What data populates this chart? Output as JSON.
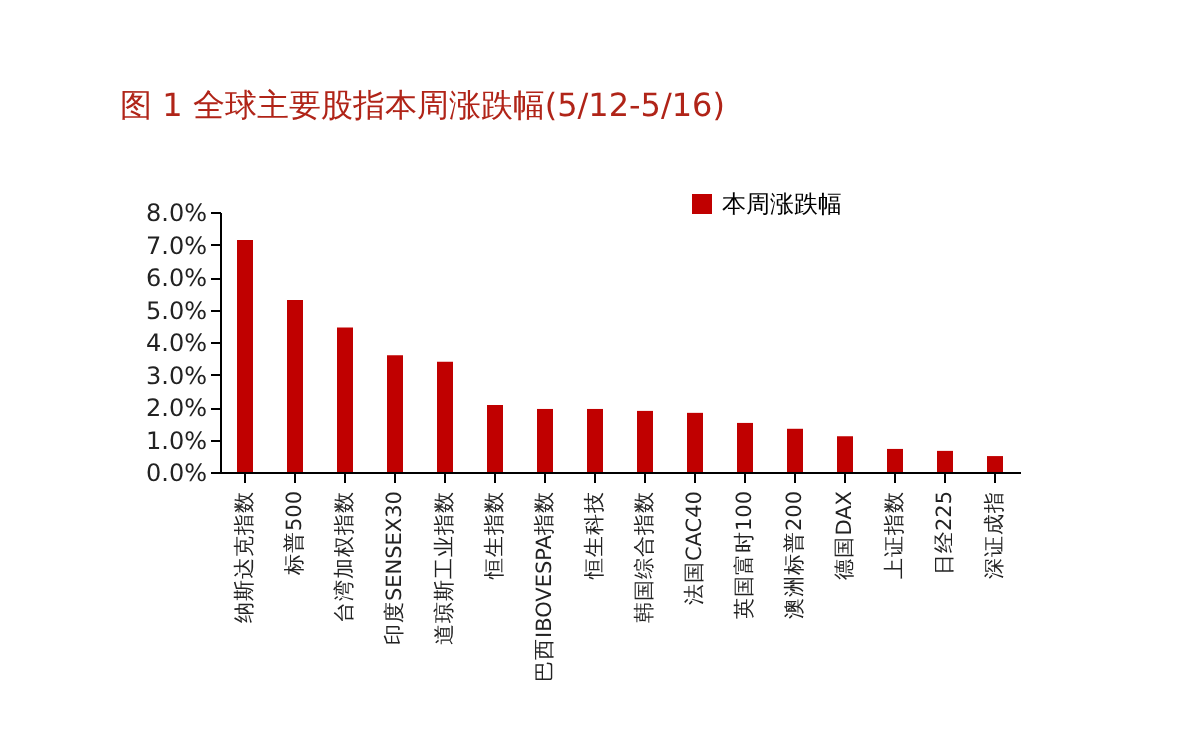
{
  "chart_data": {
    "type": "bar",
    "title": "图 1  全球主要股指本周涨跌幅(5/12-5/16)",
    "categories": [
      "纳斯达克指数",
      "标普500",
      "台湾加权指数",
      "印度SENSEX30",
      "道琼斯工业指数",
      "恒生指数",
      "巴西IBOVESPA指数",
      "恒生科技",
      "韩国综合指数",
      "法国CAC40",
      "英国富时100",
      "澳洲标普200",
      "德国DAX",
      "上证指数",
      "日经225",
      "深证成指"
    ],
    "series": [
      {
        "name": "本周涨跌幅",
        "color": "#c00000",
        "values": [
          7.14,
          5.29,
          4.45,
          3.59,
          3.39,
          2.06,
          1.94,
          1.94,
          1.88,
          1.82,
          1.51,
          1.33,
          1.1,
          0.71,
          0.65,
          0.49
        ]
      }
    ],
    "ylim": [
      0,
      8
    ],
    "yticks": [
      {
        "value": 0,
        "label": "0.0%"
      },
      {
        "value": 1,
        "label": "1.0%"
      },
      {
        "value": 2,
        "label": "2.0%"
      },
      {
        "value": 3,
        "label": "3.0%"
      },
      {
        "value": 4,
        "label": "4.0%"
      },
      {
        "value": 5,
        "label": "5.0%"
      },
      {
        "value": 6,
        "label": "6.0%"
      },
      {
        "value": 7,
        "label": "7.0%"
      },
      {
        "value": 8,
        "label": "8.0%"
      }
    ],
    "grid": false,
    "legend": "top right"
  }
}
